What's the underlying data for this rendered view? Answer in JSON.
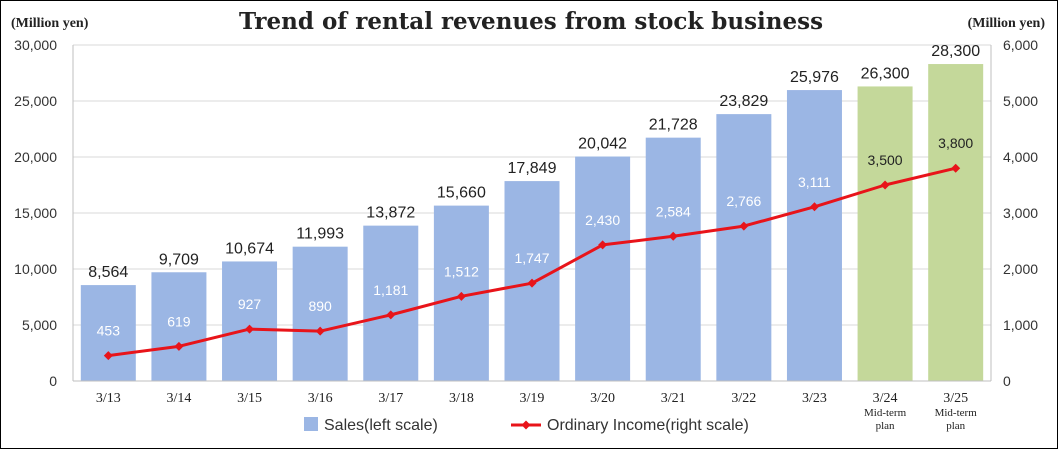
{
  "chart_data": {
    "type": "bar",
    "title": "Trend of rental revenues from stock business",
    "left_axis_unit": "(Million yen)",
    "right_axis_unit": "(Million yen)",
    "categories": [
      "3/13",
      "3/14",
      "3/15",
      "3/16",
      "3/17",
      "3/18",
      "3/19",
      "3/20",
      "3/21",
      "3/22",
      "3/23",
      "3/24",
      "3/25"
    ],
    "category_notes": [
      "",
      "",
      "",
      "",
      "",
      "",
      "",
      "",
      "",
      "",
      "",
      "Mid-term plan",
      "Mid-term plan"
    ],
    "ylim_left": [
      0,
      30000
    ],
    "yticks_left": [
      "0",
      "5,000",
      "10,000",
      "15,000",
      "20,000",
      "25,000",
      "30,000"
    ],
    "ylim_right": [
      0,
      6000
    ],
    "yticks_right": [
      "0",
      "1,000",
      "2,000",
      "3,000",
      "4,000",
      "5,000",
      "6,000"
    ],
    "grid": true,
    "legend_position": "bottom",
    "series": [
      {
        "name": "Sales(left scale)",
        "type": "bar",
        "axis": "left",
        "color": "#9bb6e4",
        "plan_color": "#c4d89a",
        "values": [
          8564,
          9709,
          10674,
          11993,
          13872,
          15660,
          17849,
          20042,
          21728,
          23829,
          25976,
          26300,
          28300
        ],
        "labels": [
          "8,564",
          "9,709",
          "10,674",
          "11,993",
          "13,872",
          "15,660",
          "17,849",
          "20,042",
          "21,728",
          "23,829",
          "25,976",
          "26,300",
          "28,300"
        ]
      },
      {
        "name": "Ordinary Income(right scale)",
        "type": "line",
        "axis": "right",
        "color": "#e8141a",
        "values": [
          453,
          619,
          927,
          890,
          1181,
          1512,
          1747,
          2430,
          2584,
          2766,
          3111,
          3500,
          3800
        ],
        "labels": [
          "453",
          "619",
          "927",
          "890",
          "1,181",
          "1,512",
          "1,747",
          "2,430",
          "2,584",
          "2,766",
          "3,111",
          "3,500",
          "3,800"
        ]
      }
    ]
  }
}
